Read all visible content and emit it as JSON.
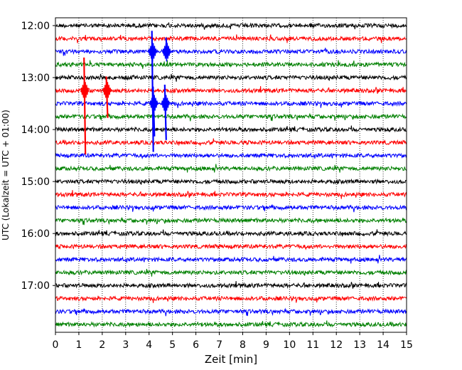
{
  "chart_data": {
    "type": "line",
    "title": "",
    "xlabel": "Zeit  [min]",
    "ylabel": "UTC (Lokalzeit = UTC + 01:00)",
    "xlim": [
      0,
      15
    ],
    "x_ticks": [
      0,
      1,
      2,
      3,
      4,
      5,
      6,
      7,
      8,
      9,
      10,
      11,
      12,
      13,
      14,
      15
    ],
    "x_tick_labels": [
      "0",
      "1",
      "2",
      "3",
      "4",
      "5",
      "6",
      "7",
      "8",
      "9",
      "10",
      "11",
      "12",
      "13",
      "14",
      "15"
    ],
    "y_tick_labels": [
      "12:00",
      "13:00",
      "14:00",
      "15:00",
      "16:00",
      "17:00"
    ],
    "y_ticks_hours": [
      12,
      13,
      14,
      15,
      16,
      17
    ],
    "time_range_hours": [
      11.85,
      17.9
    ],
    "trace_interval_minutes": 15,
    "trace_start_hour": 12.0,
    "trace_count": 24,
    "trace_colors": [
      "#000000",
      "#ff0000",
      "#0000ff",
      "#008000"
    ],
    "vertical_grid": true,
    "grid_style": "dotted",
    "events": [
      {
        "trace": 2,
        "time_min": 4.15,
        "amplitude_up": 0.22,
        "amplitude_down": 0.55,
        "note": "large transient spanning downward"
      },
      {
        "trace": 2,
        "time_min": 4.75,
        "amplitude_up": 0.15,
        "amplitude_down": 0.0
      },
      {
        "trace": 5,
        "time_min": 1.25,
        "amplitude_up": 0.35,
        "amplitude_down": 0.35
      },
      {
        "trace": 5,
        "time_min": 2.2,
        "amplitude_up": 0.15,
        "amplitude_down": 0.15
      },
      {
        "trace": 6,
        "time_min": 4.2,
        "amplitude_up": 0.18,
        "amplitude_down": 0.18
      },
      {
        "trace": 6,
        "time_min": 4.7,
        "amplitude_up": 0.2,
        "amplitude_down": 0.2
      }
    ]
  }
}
